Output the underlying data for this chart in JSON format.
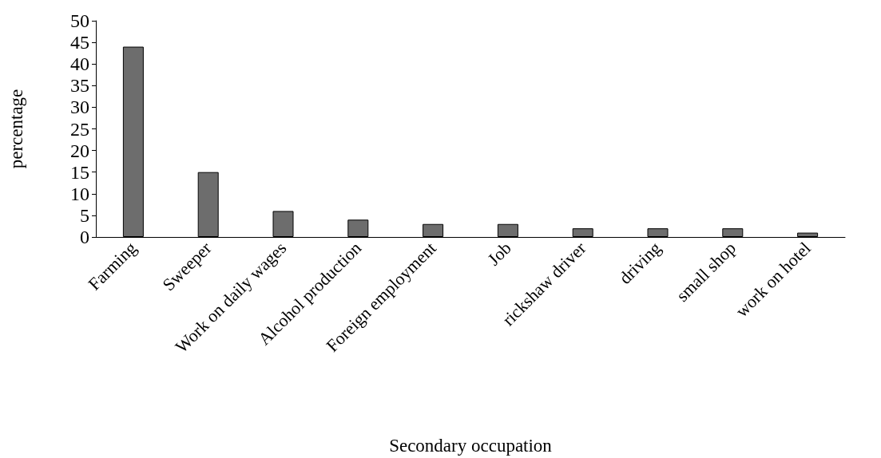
{
  "chart_data": {
    "type": "bar",
    "xlabel": "Secondary occupation",
    "ylabel": "percentage",
    "categories": [
      "Farming",
      "Sweeper",
      "Work on daily wages",
      "Alcohol production",
      "Foreign employment",
      "Job",
      "rickshaw driver",
      "driving",
      "small shop",
      "work on hotel"
    ],
    "values": [
      44,
      15,
      6,
      4,
      3,
      3,
      2,
      2,
      2,
      1
    ],
    "color": "#6d6d6d",
    "ylim": [
      0,
      50
    ],
    "yticks": [
      0,
      5,
      10,
      15,
      20,
      25,
      30,
      35,
      40,
      45,
      50
    ],
    "grid": false
  }
}
